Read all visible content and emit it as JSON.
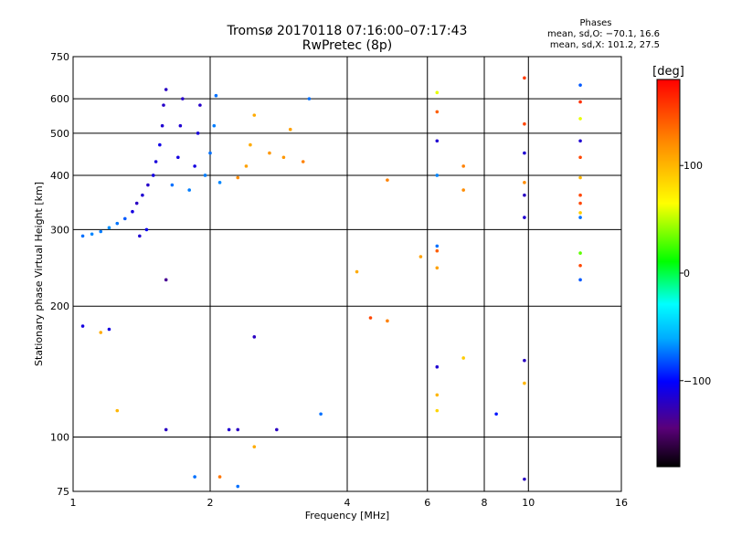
{
  "chart_data": {
    "type": "scatter",
    "title": "Tromsø 20170118 07:16:00–07:17:43",
    "subtitle": "RwPretec (8p)",
    "xlabel": "Frequency [MHz]",
    "ylabel": "Stationary phase Virtual Height [km]",
    "x_scale": "log",
    "y_scale": "log",
    "xlim": [
      1,
      16
    ],
    "ylim": [
      75,
      750
    ],
    "x_ticks": [
      1,
      2,
      4,
      6,
      8,
      10,
      16
    ],
    "y_ticks": [
      75,
      100,
      200,
      300,
      400,
      500,
      600,
      750
    ],
    "x_grid": [
      2,
      4,
      6,
      8,
      10
    ],
    "y_grid": [
      100,
      200,
      300,
      400,
      500,
      600
    ],
    "grid": true,
    "stats": {
      "header": "Phases",
      "line1": "mean, sd,O: −70.1, 16.6",
      "line2": "mean, sd,X: 101.2, 27.5"
    },
    "colorbar": {
      "label": "[deg]",
      "min": -180,
      "max": 180,
      "ticks": [
        -100,
        0,
        100
      ],
      "tick_labels": [
        "−100",
        "0",
        "100"
      ]
    },
    "points": [
      {
        "x": 1.05,
        "y": 290,
        "phase": -75
      },
      {
        "x": 1.1,
        "y": 293,
        "phase": -70
      },
      {
        "x": 1.15,
        "y": 297,
        "phase": -72
      },
      {
        "x": 1.2,
        "y": 303,
        "phase": -68
      },
      {
        "x": 1.25,
        "y": 310,
        "phase": -74
      },
      {
        "x": 1.3,
        "y": 318,
        "phase": -80
      },
      {
        "x": 1.35,
        "y": 330,
        "phase": -110
      },
      {
        "x": 1.38,
        "y": 345,
        "phase": -120
      },
      {
        "x": 1.42,
        "y": 360,
        "phase": -115
      },
      {
        "x": 1.46,
        "y": 380,
        "phase": -118
      },
      {
        "x": 1.5,
        "y": 400,
        "phase": -110
      },
      {
        "x": 1.52,
        "y": 430,
        "phase": -112
      },
      {
        "x": 1.55,
        "y": 470,
        "phase": -108
      },
      {
        "x": 1.57,
        "y": 520,
        "phase": -115
      },
      {
        "x": 1.58,
        "y": 580,
        "phase": -118
      },
      {
        "x": 1.6,
        "y": 630,
        "phase": -120
      },
      {
        "x": 1.65,
        "y": 380,
        "phase": -75
      },
      {
        "x": 1.7,
        "y": 440,
        "phase": -110
      },
      {
        "x": 1.72,
        "y": 520,
        "phase": -115
      },
      {
        "x": 1.74,
        "y": 600,
        "phase": -118
      },
      {
        "x": 1.8,
        "y": 370,
        "phase": -72
      },
      {
        "x": 1.85,
        "y": 420,
        "phase": -110
      },
      {
        "x": 1.88,
        "y": 500,
        "phase": -112
      },
      {
        "x": 1.9,
        "y": 580,
        "phase": -118
      },
      {
        "x": 1.95,
        "y": 400,
        "phase": -72
      },
      {
        "x": 2.0,
        "y": 450,
        "phase": -75
      },
      {
        "x": 2.04,
        "y": 520,
        "phase": -72
      },
      {
        "x": 2.06,
        "y": 610,
        "phase": -75
      },
      {
        "x": 2.1,
        "y": 385,
        "phase": -70
      },
      {
        "x": 2.3,
        "y": 395,
        "phase": 120
      },
      {
        "x": 2.4,
        "y": 420,
        "phase": 110
      },
      {
        "x": 2.45,
        "y": 470,
        "phase": 105
      },
      {
        "x": 2.5,
        "y": 550,
        "phase": 105
      },
      {
        "x": 2.7,
        "y": 450,
        "phase": 115
      },
      {
        "x": 2.9,
        "y": 440,
        "phase": 115
      },
      {
        "x": 3.0,
        "y": 510,
        "phase": 110
      },
      {
        "x": 3.2,
        "y": 430,
        "phase": 125
      },
      {
        "x": 3.3,
        "y": 600,
        "phase": -75
      },
      {
        "x": 4.2,
        "y": 240,
        "phase": 105
      },
      {
        "x": 4.9,
        "y": 390,
        "phase": 125
      },
      {
        "x": 4.5,
        "y": 188,
        "phase": 150
      },
      {
        "x": 4.9,
        "y": 185,
        "phase": 125
      },
      {
        "x": 5.8,
        "y": 260,
        "phase": 110
      },
      {
        "x": 6.3,
        "y": 620,
        "phase": 60
      },
      {
        "x": 6.3,
        "y": 560,
        "phase": 140
      },
      {
        "x": 6.3,
        "y": 480,
        "phase": -115
      },
      {
        "x": 6.3,
        "y": 400,
        "phase": -70
      },
      {
        "x": 6.3,
        "y": 275,
        "phase": -75
      },
      {
        "x": 6.3,
        "y": 268,
        "phase": 140
      },
      {
        "x": 6.3,
        "y": 245,
        "phase": 110
      },
      {
        "x": 6.3,
        "y": 145,
        "phase": -115
      },
      {
        "x": 6.3,
        "y": 125,
        "phase": 100
      },
      {
        "x": 6.3,
        "y": 115,
        "phase": 85
      },
      {
        "x": 7.2,
        "y": 420,
        "phase": 125
      },
      {
        "x": 7.2,
        "y": 370,
        "phase": 120
      },
      {
        "x": 7.2,
        "y": 152,
        "phase": 90
      },
      {
        "x": 8.5,
        "y": 113,
        "phase": -95
      },
      {
        "x": 9.8,
        "y": 670,
        "phase": 155
      },
      {
        "x": 9.8,
        "y": 525,
        "phase": 150
      },
      {
        "x": 9.8,
        "y": 450,
        "phase": -115
      },
      {
        "x": 9.8,
        "y": 385,
        "phase": 120
      },
      {
        "x": 9.8,
        "y": 360,
        "phase": -120
      },
      {
        "x": 9.8,
        "y": 320,
        "phase": -115
      },
      {
        "x": 9.8,
        "y": 150,
        "phase": -120
      },
      {
        "x": 9.8,
        "y": 133,
        "phase": 100
      },
      {
        "x": 9.8,
        "y": 80,
        "phase": -120
      },
      {
        "x": 13.0,
        "y": 645,
        "phase": -80
      },
      {
        "x": 13.0,
        "y": 590,
        "phase": 160
      },
      {
        "x": 13.0,
        "y": 540,
        "phase": 60
      },
      {
        "x": 13.0,
        "y": 480,
        "phase": -115
      },
      {
        "x": 13.0,
        "y": 440,
        "phase": 150
      },
      {
        "x": 13.0,
        "y": 395,
        "phase": 100
      },
      {
        "x": 13.0,
        "y": 360,
        "phase": 150
      },
      {
        "x": 13.0,
        "y": 345,
        "phase": 150
      },
      {
        "x": 13.0,
        "y": 328,
        "phase": 90
      },
      {
        "x": 13.0,
        "y": 320,
        "phase": -75
      },
      {
        "x": 13.0,
        "y": 265,
        "phase": 30
      },
      {
        "x": 13.0,
        "y": 248,
        "phase": 150
      },
      {
        "x": 13.0,
        "y": 230,
        "phase": -80
      },
      {
        "x": 1.05,
        "y": 180,
        "phase": -110
      },
      {
        "x": 1.2,
        "y": 177,
        "phase": -110
      },
      {
        "x": 1.15,
        "y": 174,
        "phase": 105
      },
      {
        "x": 1.25,
        "y": 115,
        "phase": 100
      },
      {
        "x": 1.4,
        "y": 290,
        "phase": -115
      },
      {
        "x": 1.45,
        "y": 300,
        "phase": -105
      },
      {
        "x": 1.6,
        "y": 230,
        "phase": -135
      },
      {
        "x": 1.6,
        "y": 104,
        "phase": -120
      },
      {
        "x": 1.85,
        "y": 81,
        "phase": -75
      },
      {
        "x": 2.1,
        "y": 81,
        "phase": 130
      },
      {
        "x": 2.2,
        "y": 104,
        "phase": -115
      },
      {
        "x": 2.3,
        "y": 104,
        "phase": -120
      },
      {
        "x": 2.3,
        "y": 77,
        "phase": -75
      },
      {
        "x": 2.5,
        "y": 170,
        "phase": -120
      },
      {
        "x": 2.5,
        "y": 95,
        "phase": 105
      },
      {
        "x": 2.8,
        "y": 104,
        "phase": -120
      },
      {
        "x": 3.5,
        "y": 113,
        "phase": -75
      }
    ]
  }
}
